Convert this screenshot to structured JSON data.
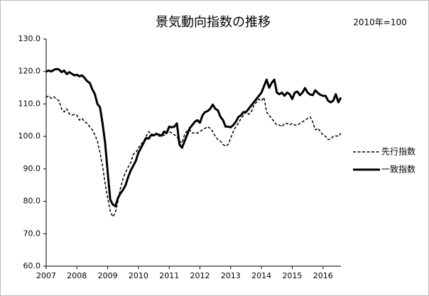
{
  "chart_data": {
    "type": "line",
    "title": "景気動向指数の推移",
    "annotation": "2010年=100",
    "categories": [
      "2007",
      null,
      null,
      null,
      null,
      null,
      null,
      null,
      null,
      null,
      null,
      null,
      "2008",
      null,
      null,
      null,
      null,
      null,
      null,
      null,
      null,
      null,
      null,
      null,
      "2009",
      null,
      null,
      null,
      null,
      null,
      null,
      null,
      null,
      null,
      null,
      null,
      "2010",
      null,
      null,
      null,
      null,
      null,
      null,
      null,
      null,
      null,
      null,
      null,
      "2011",
      null,
      null,
      null,
      null,
      null,
      null,
      null,
      null,
      null,
      null,
      null,
      "2012",
      null,
      null,
      null,
      null,
      null,
      null,
      null,
      null,
      null,
      null,
      null,
      "2013",
      null,
      null,
      null,
      null,
      null,
      null,
      null,
      null,
      null,
      null,
      null,
      "2014",
      null,
      null,
      null,
      null,
      null,
      null,
      null,
      null,
      null,
      null,
      null,
      "2015",
      null,
      null,
      null,
      null,
      null,
      null,
      null,
      null,
      null,
      null,
      null,
      "2016",
      null,
      null,
      null,
      null,
      null,
      null,
      null
    ],
    "series": [
      {
        "name": "先行指数",
        "color": "#000000",
        "style": "dashed",
        "width": 1.5,
        "values": [
          112,
          112.5,
          111.7,
          112.2,
          111.5,
          111,
          108.5,
          107.5,
          108.5,
          107,
          106.5,
          106.8,
          106.5,
          105,
          105.5,
          104.5,
          104,
          103,
          102,
          100.5,
          98.5,
          95,
          91,
          85.5,
          81,
          77,
          75.2,
          76.5,
          80,
          84,
          87,
          89,
          90.5,
          92,
          94.5,
          95,
          96.5,
          97.5,
          98.5,
          100,
          101.5,
          100.8,
          100.5,
          101,
          100,
          100.5,
          100.3,
          101.5,
          101.5,
          101,
          100.5,
          100,
          98.5,
          98,
          100.5,
          101.8,
          102,
          101,
          101.2,
          101,
          101.5,
          102,
          102.5,
          103,
          102.5,
          101.5,
          100,
          99,
          98.5,
          97.5,
          97,
          97.5,
          99.5,
          101.5,
          103,
          104,
          105.5,
          106.5,
          107.5,
          106.8,
          107.5,
          109.5,
          110.5,
          111.5,
          111,
          112,
          107.5,
          106.5,
          105.5,
          104.5,
          103.5,
          103.5,
          103,
          104,
          104,
          103.5,
          104,
          103.5,
          103.5,
          104,
          104.5,
          105,
          105.5,
          106,
          104.5,
          102,
          102.5,
          101.5,
          100.5,
          100,
          99,
          99.2,
          100,
          100.2,
          100,
          101
        ]
      },
      {
        "name": "一致指数",
        "color": "#000000",
        "style": "solid",
        "width": 3,
        "values": [
          120,
          120.3,
          120,
          120.5,
          120.8,
          120.6,
          119.8,
          120.3,
          119.2,
          119.8,
          119.3,
          118.8,
          119,
          118.5,
          118.8,
          118,
          117,
          116.5,
          114.5,
          113,
          110,
          109,
          104,
          98,
          89,
          80.5,
          79,
          78.5,
          81,
          82.5,
          83.5,
          85,
          87.5,
          89.5,
          91,
          92.5,
          95,
          96.5,
          98,
          99.5,
          99.3,
          100.5,
          100.3,
          100.8,
          100.5,
          100.2,
          101.5,
          101,
          103,
          102.8,
          103,
          104,
          97.5,
          96.5,
          98.5,
          100.5,
          102.5,
          103.5,
          104.5,
          105,
          104.2,
          106.5,
          107.5,
          107.8,
          108.5,
          109.8,
          108.5,
          108,
          106,
          105,
          103,
          103,
          102.8,
          103.5,
          104.5,
          106,
          106.5,
          107.5,
          107.5,
          108.5,
          109.5,
          110.5,
          111.5,
          112.5,
          113.5,
          115.5,
          117.5,
          115,
          116.5,
          117.5,
          113.5,
          113,
          113.5,
          112.5,
          113.5,
          113,
          111.5,
          113.5,
          113.8,
          112.7,
          113.5,
          114.9,
          113.5,
          112.9,
          112.7,
          114.2,
          113.4,
          112.8,
          112.5,
          112.5,
          111,
          110.5,
          111,
          113,
          110.5,
          112
        ]
      }
    ],
    "ylim": [
      60,
      130
    ],
    "yticks": [
      {
        "value": 60,
        "label": "60.0"
      },
      {
        "value": 70,
        "label": "70.0"
      },
      {
        "value": 80,
        "label": "80.0"
      },
      {
        "value": 90,
        "label": "90.0"
      },
      {
        "value": 100,
        "label": "100.0"
      },
      {
        "value": 110,
        "label": "110.0"
      },
      {
        "value": 120,
        "label": "120.0"
      },
      {
        "value": 130,
        "label": "130.0"
      }
    ],
    "grid": false,
    "legend": "right"
  }
}
